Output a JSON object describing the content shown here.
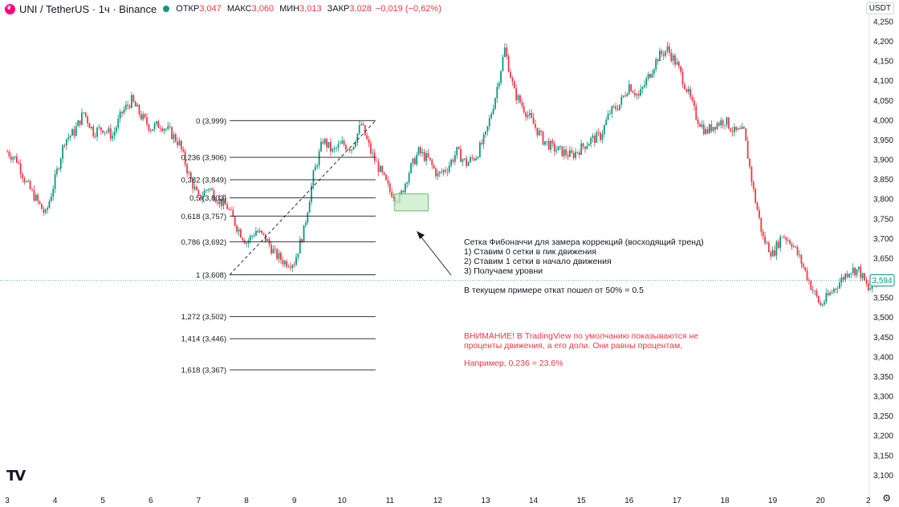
{
  "header": {
    "symbol": "UNI / TetherUS · 1ч · Binance",
    "open_label": "ОТКР",
    "open_value": "3,047",
    "high_label": "МАКС",
    "high_value": "3,060",
    "low_label": "МИН",
    "low_value": "3,013",
    "close_label": "ЗАКР",
    "close_value": "3,028",
    "change": "−0,019 (−0,62%)"
  },
  "currency_button": "USDT",
  "price_tag": "3,594",
  "tv_logo": "TV",
  "settings_icon": "⚙",
  "annotations": {
    "lines": [
      "Сетка Фибоначчи для замера коррекций (восходящий тренд)",
      "1) Ставим 0 сетки в пик движения",
      "2) Ставим 1 сетки в начало движения",
      "3) Получаем уровни",
      "В текущем примере откат пошел от 50% = 0.5"
    ],
    "warning": [
      "ВНИМАНИЕ! В TradingView по умолчанию показываются не",
      "проценты движения, а его доли. Они равны процентам,"
    ],
    "example": "Например, 0.236 = 23.6%"
  },
  "colors": {
    "up": "#089981",
    "down": "#f23645",
    "grid": "#f0f3fa",
    "text": "#131722",
    "zone": "#b7e4b7"
  },
  "chart_data": {
    "type": "candlestick",
    "symbol": "UNI/USDT",
    "interval": "1ч",
    "ylim": [
      3.06,
      4.26
    ],
    "y_ticks": [
      "3,100",
      "3,150",
      "3,200",
      "3,250",
      "3,300",
      "3,350",
      "3,400",
      "3,450",
      "3,500",
      "3,550",
      "3,600",
      "3,650",
      "3,700",
      "3,750",
      "3,800",
      "3,850",
      "3,900",
      "3,950",
      "4,000",
      "4,050",
      "4,100",
      "4,150",
      "4,200",
      "4,250"
    ],
    "y_tick_values": [
      3.1,
      3.15,
      3.2,
      3.25,
      3.3,
      3.35,
      3.4,
      3.45,
      3.5,
      3.55,
      3.6,
      3.65,
      3.7,
      3.75,
      3.8,
      3.85,
      3.9,
      3.95,
      4.0,
      4.05,
      4.1,
      4.15,
      4.2,
      4.25
    ],
    "x_ticks": [
      "3",
      "4",
      "5",
      "6",
      "7",
      "8",
      "9",
      "10",
      "11",
      "12",
      "13",
      "14",
      "15",
      "16",
      "17",
      "18",
      "19",
      "20",
      "2"
    ],
    "x_tick_index": [
      0,
      1,
      2,
      3,
      4,
      5,
      6,
      7,
      8,
      9,
      10,
      11,
      12,
      13,
      14,
      15,
      16,
      17,
      18
    ],
    "close_series": [
      [
        0,
        3.92
      ],
      [
        0.2,
        3.9
      ],
      [
        0.4,
        3.84
      ],
      [
        0.6,
        3.8
      ],
      [
        0.8,
        3.76
      ],
      [
        1.0,
        3.85
      ],
      [
        1.2,
        3.95
      ],
      [
        1.4,
        3.97
      ],
      [
        1.6,
        4.02
      ],
      [
        1.8,
        3.97
      ],
      [
        2.0,
        3.98
      ],
      [
        2.2,
        3.96
      ],
      [
        2.4,
        4.02
      ],
      [
        2.6,
        4.05
      ],
      [
        2.8,
        4.01
      ],
      [
        3.0,
        3.98
      ],
      [
        3.2,
        3.99
      ],
      [
        3.4,
        3.97
      ],
      [
        3.6,
        3.94
      ],
      [
        3.8,
        3.86
      ],
      [
        4.0,
        3.8
      ],
      [
        4.2,
        3.83
      ],
      [
        4.4,
        3.8
      ],
      [
        4.6,
        3.78
      ],
      [
        4.8,
        3.73
      ],
      [
        5.0,
        3.69
      ],
      [
        5.2,
        3.72
      ],
      [
        5.4,
        3.7
      ],
      [
        5.6,
        3.66
      ],
      [
        5.8,
        3.64
      ],
      [
        6.0,
        3.64
      ],
      [
        6.2,
        3.72
      ],
      [
        6.4,
        3.86
      ],
      [
        6.6,
        3.95
      ],
      [
        6.8,
        3.92
      ],
      [
        7.0,
        3.94
      ],
      [
        7.2,
        3.93
      ],
      [
        7.4,
        3.99
      ],
      [
        7.6,
        3.92
      ],
      [
        7.8,
        3.87
      ],
      [
        8.0,
        3.82
      ],
      [
        8.2,
        3.8
      ],
      [
        8.4,
        3.87
      ],
      [
        8.6,
        3.92
      ],
      [
        8.8,
        3.9
      ],
      [
        9.0,
        3.86
      ],
      [
        9.2,
        3.88
      ],
      [
        9.4,
        3.92
      ],
      [
        9.6,
        3.89
      ],
      [
        9.8,
        3.91
      ],
      [
        10.0,
        3.96
      ],
      [
        10.2,
        4.06
      ],
      [
        10.4,
        4.18
      ],
      [
        10.6,
        4.07
      ],
      [
        10.8,
        4.03
      ],
      [
        11.0,
        3.99
      ],
      [
        11.2,
        3.95
      ],
      [
        11.4,
        3.93
      ],
      [
        11.6,
        3.92
      ],
      [
        11.8,
        3.91
      ],
      [
        12.0,
        3.93
      ],
      [
        12.2,
        3.95
      ],
      [
        12.4,
        3.96
      ],
      [
        12.6,
        4.02
      ],
      [
        12.8,
        4.04
      ],
      [
        13.0,
        4.09
      ],
      [
        13.2,
        4.06
      ],
      [
        13.4,
        4.11
      ],
      [
        13.6,
        4.16
      ],
      [
        13.8,
        4.18
      ],
      [
        14.0,
        4.14
      ],
      [
        14.2,
        4.08
      ],
      [
        14.4,
        4.01
      ],
      [
        14.6,
        3.97
      ],
      [
        14.8,
        3.99
      ],
      [
        15.0,
        4.0
      ],
      [
        15.2,
        3.97
      ],
      [
        15.4,
        3.97
      ],
      [
        15.6,
        3.82
      ],
      [
        15.8,
        3.7
      ],
      [
        16.0,
        3.66
      ],
      [
        16.2,
        3.71
      ],
      [
        16.4,
        3.69
      ],
      [
        16.6,
        3.64
      ],
      [
        16.8,
        3.58
      ],
      [
        17.0,
        3.53
      ],
      [
        17.2,
        3.56
      ],
      [
        17.4,
        3.59
      ],
      [
        17.6,
        3.62
      ],
      [
        17.8,
        3.62
      ],
      [
        18.0,
        3.57
      ],
      [
        18.2,
        3.59
      ]
    ],
    "fibonacci": {
      "levels": [
        {
          "label": "0 (3,999)",
          "value": 3.999
        },
        {
          "label": "0,236 (3,906)",
          "value": 3.906
        },
        {
          "label": "0,382 (3,849)",
          "value": 3.849
        },
        {
          "label": "0,5 (3,803)",
          "value": 3.803
        },
        {
          "label": "0,618 (3,757)",
          "value": 3.757
        },
        {
          "label": "0,786 (3,692)",
          "value": 3.692
        },
        {
          "label": "1 (3,608)",
          "value": 3.608
        },
        {
          "label": "1,272 (3,502)",
          "value": 3.502
        },
        {
          "label": "1,414 (3,446)",
          "value": 3.446
        },
        {
          "label": "1,618 (3,367)",
          "value": 3.367
        }
      ],
      "start_day_index": 4.65,
      "end_day_index": 7.7
    },
    "highlight_zone": {
      "y_top": 3.813,
      "y_bottom": 3.77,
      "x_start": 8.1,
      "x_end": 8.8
    },
    "last_price": 3.594
  }
}
